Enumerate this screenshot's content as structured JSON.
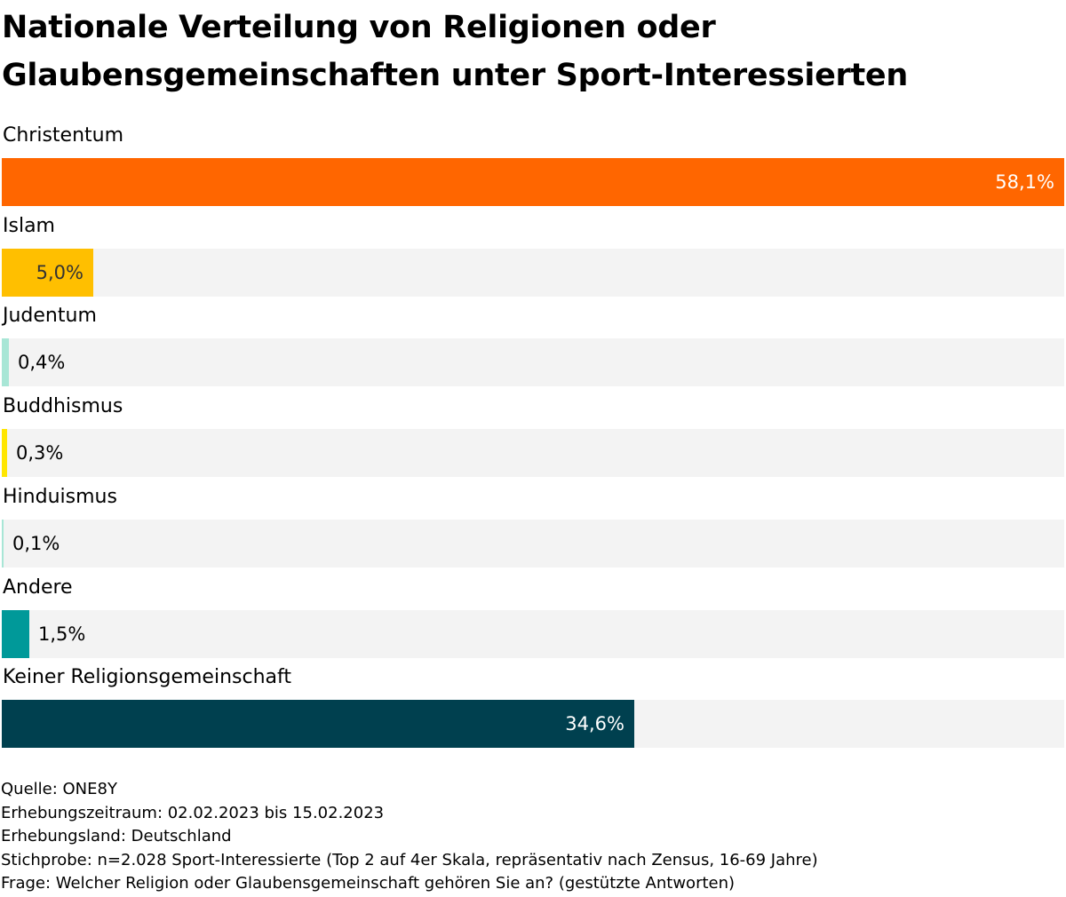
{
  "title": "Nationale Verteilung von Religionen oder Glaubensgemeinschaften unter Sport-Interessierten",
  "chart_data": {
    "type": "bar",
    "orientation": "horizontal",
    "title": "Nationale Verteilung von Religionen oder Glaubensgemeinschaften unter Sport-Interessierten",
    "xlim": [
      0,
      58.1
    ],
    "unit": "%",
    "categories": [
      "Christentum",
      "Islam",
      "Judentum",
      "Buddhismus",
      "Hinduismus",
      "Andere",
      "Keiner Religionsgemeinschaft"
    ],
    "values": [
      58.1,
      5.0,
      0.4,
      0.3,
      0.1,
      1.5,
      34.6
    ],
    "value_labels": [
      "58,1%",
      "5,0%",
      "0,4%",
      "0,3%",
      "0,1%",
      "1,5%",
      "34,6%"
    ],
    "colors": [
      "#ff6600",
      "#ffbf00",
      "#a8e6d6",
      "#ffe600",
      "#a8e6d6",
      "#009999",
      "#00404f"
    ],
    "label_colors": [
      "#ffffff",
      "#333333",
      "#000000",
      "#000000",
      "#000000",
      "#000000",
      "#ffffff"
    ],
    "label_inside": [
      true,
      true,
      false,
      false,
      false,
      false,
      true
    ]
  },
  "footer": {
    "source": "Quelle: ONE8Y",
    "period": "Erhebungszeitraum: 02.02.2023 bis 15.02.2023",
    "country": "Erhebungsland: Deutschland",
    "sample": "Stichprobe: n=2.028 Sport-Interessierte (Top 2 auf 4er Skala, repräsentativ nach Zensus, 16-69 Jahre)",
    "question": "Frage: Welcher Religion oder Glaubensgemeinschaft gehören Sie an? (gestützte Antworten)"
  }
}
